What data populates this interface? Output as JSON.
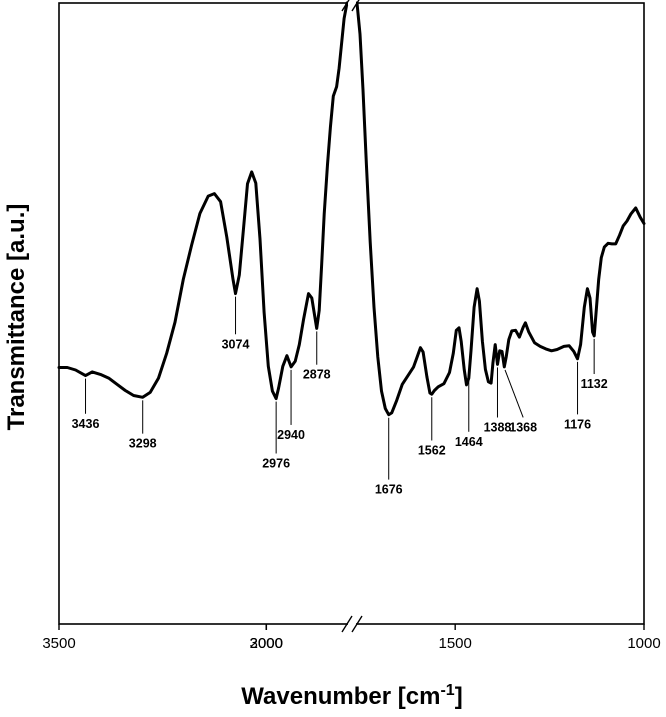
{
  "chart_data": {
    "type": "line",
    "title": "",
    "xlabel": "Wavenumber [cm",
    "xlabel_sup": "-1",
    "xlabel_close": "]",
    "ylabel": "Transmittance [a.u.]",
    "x_reversed": true,
    "axis_break": true,
    "y_ticks_shown": false,
    "x_ticks": [
      {
        "value": 3500,
        "label": "3500"
      },
      {
        "value": 3000,
        "label": "3000"
      },
      {
        "value": 2000,
        "label": "2000"
      },
      {
        "value": 1500,
        "label": "1500"
      },
      {
        "value": 1000,
        "label": "1000"
      }
    ],
    "ylim": [
      0,
      100
    ],
    "series": [
      {
        "color": "#000000",
        "points": [
          [
            3500,
            41.3
          ],
          [
            3480,
            41.3
          ],
          [
            3460,
            40.9
          ],
          [
            3436,
            40.0
          ],
          [
            3420,
            40.6
          ],
          [
            3400,
            40.2
          ],
          [
            3380,
            39.6
          ],
          [
            3360,
            38.6
          ],
          [
            3340,
            37.6
          ],
          [
            3320,
            36.8
          ],
          [
            3298,
            36.5
          ],
          [
            3280,
            37.3
          ],
          [
            3260,
            39.6
          ],
          [
            3240,
            43.6
          ],
          [
            3220,
            48.6
          ],
          [
            3200,
            55.5
          ],
          [
            3180,
            61.0
          ],
          [
            3160,
            66.1
          ],
          [
            3140,
            68.9
          ],
          [
            3125,
            69.3
          ],
          [
            3110,
            68.0
          ],
          [
            3095,
            62.3
          ],
          [
            3080,
            55.5
          ],
          [
            3074,
            53.2
          ],
          [
            3065,
            56.2
          ],
          [
            3055,
            63.5
          ],
          [
            3045,
            70.9
          ],
          [
            3035,
            72.8
          ],
          [
            3025,
            71.0
          ],
          [
            3015,
            62.0
          ],
          [
            3005,
            50.2
          ],
          [
            2995,
            41.5
          ],
          [
            2985,
            37.5
          ],
          [
            2976,
            36.3
          ],
          [
            2970,
            38.0
          ],
          [
            2960,
            41.5
          ],
          [
            2950,
            43.2
          ],
          [
            2940,
            41.4
          ],
          [
            2930,
            42.3
          ],
          [
            2920,
            45.0
          ],
          [
            2910,
            49.0
          ],
          [
            2898,
            53.2
          ],
          [
            2890,
            52.5
          ],
          [
            2878,
            47.6
          ],
          [
            2872,
            50.5
          ],
          [
            2866,
            58.0
          ],
          [
            2860,
            66.0
          ],
          [
            2852,
            74.0
          ],
          [
            2845,
            80.0
          ],
          [
            2838,
            85.0
          ],
          [
            2830,
            86.5
          ],
          [
            2824,
            89.5
          ],
          [
            2818,
            93.5
          ],
          [
            2812,
            97.5
          ],
          [
            2805,
            100.0
          ],
          [
            1760,
            100.0
          ],
          [
            1752,
            95.0
          ],
          [
            1744,
            86.0
          ],
          [
            1735,
            74.0
          ],
          [
            1725,
            61.5
          ],
          [
            1715,
            51.0
          ],
          [
            1705,
            43.0
          ],
          [
            1695,
            37.5
          ],
          [
            1685,
            34.7
          ],
          [
            1676,
            33.7
          ],
          [
            1668,
            34.0
          ],
          [
            1655,
            36.0
          ],
          [
            1640,
            38.6
          ],
          [
            1625,
            40.0
          ],
          [
            1610,
            41.4
          ],
          [
            1600,
            43.1
          ],
          [
            1592,
            44.5
          ],
          [
            1585,
            43.8
          ],
          [
            1575,
            39.8
          ],
          [
            1567,
            37.2
          ],
          [
            1562,
            37.0
          ],
          [
            1555,
            37.6
          ],
          [
            1545,
            38.2
          ],
          [
            1530,
            38.7
          ],
          [
            1515,
            40.5
          ],
          [
            1505,
            43.6
          ],
          [
            1497,
            47.3
          ],
          [
            1490,
            47.7
          ],
          [
            1484,
            45.5
          ],
          [
            1476,
            41.0
          ],
          [
            1470,
            38.5
          ],
          [
            1464,
            39.6
          ],
          [
            1458,
            44.0
          ],
          [
            1450,
            51.0
          ],
          [
            1442,
            54.0
          ],
          [
            1436,
            52.0
          ],
          [
            1428,
            45.5
          ],
          [
            1420,
            41.0
          ],
          [
            1412,
            39.0
          ],
          [
            1405,
            38.8
          ],
          [
            1400,
            42.0
          ],
          [
            1394,
            45.0
          ],
          [
            1388,
            41.8
          ],
          [
            1382,
            44.0
          ],
          [
            1376,
            43.9
          ],
          [
            1370,
            41.4
          ],
          [
            1365,
            43.0
          ],
          [
            1358,
            45.8
          ],
          [
            1350,
            47.2
          ],
          [
            1340,
            47.3
          ],
          [
            1330,
            46.2
          ],
          [
            1320,
            47.8
          ],
          [
            1314,
            48.5
          ],
          [
            1305,
            47.0
          ],
          [
            1290,
            45.3
          ],
          [
            1275,
            44.7
          ],
          [
            1260,
            44.3
          ],
          [
            1245,
            44.0
          ],
          [
            1230,
            44.2
          ],
          [
            1212,
            44.7
          ],
          [
            1198,
            44.8
          ],
          [
            1186,
            43.9
          ],
          [
            1176,
            42.7
          ],
          [
            1168,
            45.0
          ],
          [
            1158,
            51.0
          ],
          [
            1150,
            54.0
          ],
          [
            1143,
            52.5
          ],
          [
            1136,
            47.0
          ],
          [
            1132,
            46.4
          ],
          [
            1127,
            50.0
          ],
          [
            1120,
            55.5
          ],
          [
            1113,
            59.0
          ],
          [
            1105,
            60.7
          ],
          [
            1095,
            61.3
          ],
          [
            1085,
            61.2
          ],
          [
            1075,
            61.2
          ],
          [
            1065,
            62.6
          ],
          [
            1055,
            64.1
          ],
          [
            1045,
            64.9
          ],
          [
            1035,
            66.0
          ],
          [
            1022,
            67.0
          ],
          [
            1010,
            65.5
          ],
          [
            1000,
            64.5
          ]
        ]
      }
    ],
    "annotations": [
      {
        "label": "3436",
        "x": 3436,
        "y": 40.0,
        "label_y": 31.6
      },
      {
        "label": "3298",
        "x": 3298,
        "y": 36.5,
        "label_y": 28.4
      },
      {
        "label": "3074",
        "x": 3074,
        "y": 53.2,
        "label_y": 44.4
      },
      {
        "label": "2976",
        "x": 2976,
        "y": 36.3,
        "label_y": 25.2
      },
      {
        "label": "2940",
        "x": 2940,
        "y": 41.4,
        "label_y": 29.8
      },
      {
        "label": "2878",
        "x": 2878,
        "y": 47.6,
        "label_y": 39.5
      },
      {
        "label": "1676",
        "x": 1676,
        "y": 33.7,
        "label_y": 21.0
      },
      {
        "label": "1562",
        "x": 1562,
        "y": 37.0,
        "label_y": 27.3
      },
      {
        "label": "1464",
        "x": 1464,
        "y": 39.6,
        "label_y": 28.7
      },
      {
        "label": "1388",
        "x": 1388,
        "y": 41.8,
        "label_y": 31.0
      },
      {
        "label": "1368",
        "x": 1368,
        "y": 41.4,
        "label_y": 31.0,
        "label_x": 1320
      },
      {
        "label": "1176",
        "x": 1176,
        "y": 42.7,
        "label_y": 31.5
      },
      {
        "label": "1132",
        "x": 1132,
        "y": 46.4,
        "label_y": 38.0
      }
    ]
  }
}
